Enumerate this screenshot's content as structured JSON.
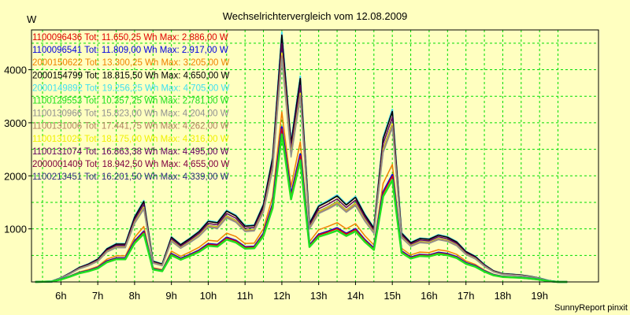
{
  "colors": {
    "background": "#ffffc0",
    "grid": "#00dd00",
    "frame": "#000000"
  },
  "chart_data": {
    "type": "line",
    "title": "Wechselrichtervergleich vom 12.08.2009",
    "ylabel": "W",
    "xlabel": "",
    "credit": "SunnyReport pinxit",
    "xlim": [
      5.2,
      20.6
    ],
    "ylim": [
      0,
      4750
    ],
    "yticks": [
      1000,
      2000,
      3000,
      4000
    ],
    "xticks": [
      {
        "v": 6,
        "label": "6h"
      },
      {
        "v": 7,
        "label": "7h"
      },
      {
        "v": 8,
        "label": "8h"
      },
      {
        "v": 9,
        "label": "9h"
      },
      {
        "v": 10,
        "label": "10h"
      },
      {
        "v": 11,
        "label": "11h"
      },
      {
        "v": 12,
        "label": "12h"
      },
      {
        "v": 13,
        "label": "13h"
      },
      {
        "v": 14,
        "label": "14h"
      },
      {
        "v": 15,
        "label": "15h"
      },
      {
        "v": 16,
        "label": "16h"
      },
      {
        "v": 17,
        "label": "17h"
      },
      {
        "v": 18,
        "label": "18h"
      },
      {
        "v": 19,
        "label": "19h"
      }
    ],
    "grid": true,
    "legend_position": "top-left",
    "x": [
      5.3,
      5.75,
      6.0,
      6.25,
      6.5,
      6.75,
      7.0,
      7.25,
      7.5,
      7.75,
      8.0,
      8.25,
      8.5,
      8.75,
      9.0,
      9.25,
      9.5,
      9.75,
      10.0,
      10.25,
      10.5,
      10.75,
      11.0,
      11.25,
      11.5,
      11.75,
      12.0,
      12.25,
      12.5,
      12.75,
      13.0,
      13.25,
      13.5,
      13.75,
      14.0,
      14.25,
      14.5,
      14.75,
      15.0,
      15.25,
      15.5,
      15.75,
      16.0,
      16.25,
      16.5,
      16.75,
      17.0,
      17.25,
      17.5,
      17.75,
      18.0,
      18.25,
      18.5,
      18.75,
      19.0,
      19.25,
      19.5,
      19.75
    ],
    "base_profile": [
      0,
      10,
      60,
      130,
      210,
      260,
      330,
      480,
      550,
      550,
      940,
      1170,
      300,
      260,
      650,
      540,
      630,
      730,
      880,
      860,
      1030,
      960,
      810,
      820,
      1120,
      1800,
      3590,
      2010,
      2960,
      850,
      1100,
      1170,
      1250,
      1120,
      1230,
      980,
      780,
      2080,
      2480,
      710,
      570,
      630,
      620,
      680,
      650,
      580,
      440,
      370,
      250,
      160,
      120,
      110,
      100,
      80,
      55,
      20,
      0,
      0
    ],
    "series": [
      {
        "name": "1100096436",
        "legend": "1100096436 Tot: 11.650,25 Wh Max: 2.886,00 W",
        "color": "#e00000",
        "max": 2886,
        "width": 1.5
      },
      {
        "name": "1100096541",
        "legend": "1100096541 Tot: 11.809,00 Wh Max: 2.917,00 W",
        "color": "#0000e0",
        "max": 2917,
        "width": 2.5
      },
      {
        "name": "2000150622",
        "legend": "2000150622 Tot: 13.300,25 Wh Max: 3.205,00 W",
        "color": "#f08000",
        "max": 3205,
        "width": 1.5
      },
      {
        "name": "2000154799",
        "legend": "2000154799 Tot: 18.815,50 Wh Max: 4.650,00 W",
        "color": "#000000",
        "max": 4650,
        "width": 1.5
      },
      {
        "name": "2000149892",
        "legend": "2000149892 Tot: 19.256,25 Wh Max: 4.705,00 W",
        "color": "#40e0f0",
        "max": 4705,
        "width": 2
      },
      {
        "name": "1100129553",
        "legend": "1100129553 Tot: 10.357,25 Wh Max: 2.781,00 W",
        "color": "#20e020",
        "max": 2781,
        "width": 2.5
      },
      {
        "name": "1100130966",
        "legend": "1100130966 Tot: 15.823,00 Wh Max: 4.204,00 W",
        "color": "#909090",
        "max": 4204,
        "width": 1.5
      },
      {
        "name": "1100131006",
        "legend": "1100131006 Tot: 17.441,75 Wh Max: 4.262,00 W",
        "color": "#b08060",
        "max": 4262,
        "width": 1.5
      },
      {
        "name": "1100131025",
        "legend": "1100131025 Tot: 18.175,00 Wh Max: 4.316,00 W",
        "color": "#f0f000",
        "max": 4316,
        "width": 1.5
      },
      {
        "name": "1100131074",
        "legend": "1100131074 Tot: 16.863,38 Wh Max: 4.495,00 W",
        "color": "#600060",
        "max": 4495,
        "width": 1.5
      },
      {
        "name": "2000001409",
        "legend": "2000001409 Tot: 18.942,50 Wh Max: 4.655,00 W",
        "color": "#800040",
        "max": 4655,
        "width": 1.5
      },
      {
        "name": "1100213451",
        "legend": "1100213451 Tot: 16.201,50 Wh Max: 4.339,00 W",
        "color": "#303080",
        "max": 4339,
        "width": 1.5
      }
    ]
  }
}
